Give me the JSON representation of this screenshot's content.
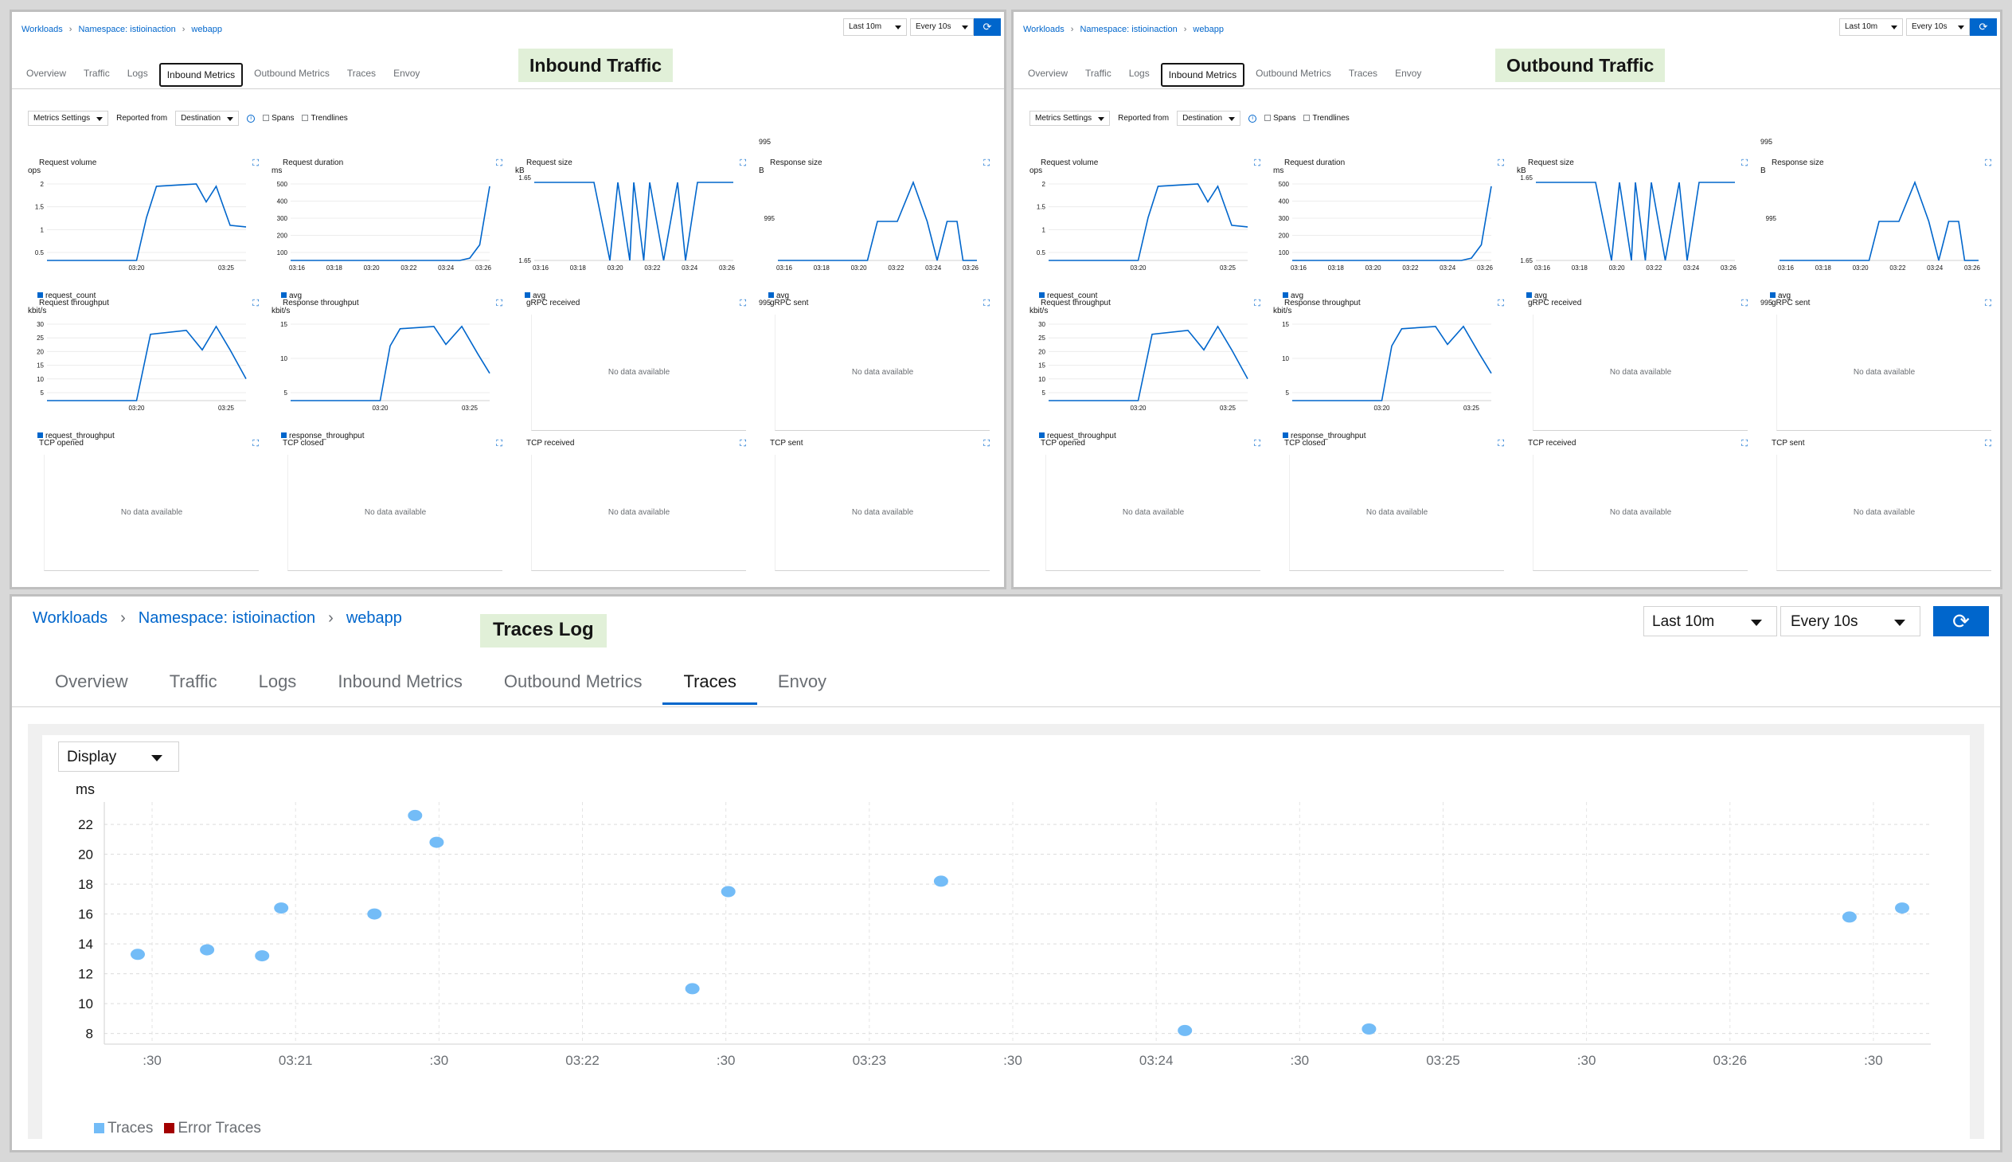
{
  "breadcrumb": {
    "workloads": "Workloads",
    "namespace": "Namespace: istioinaction",
    "app": "webapp"
  },
  "time_range": "Last 10m",
  "refresh": "Every 10s",
  "tabs": [
    "Overview",
    "Traffic",
    "Logs",
    "Inbound Metrics",
    "Outbound Metrics",
    "Traces",
    "Envoy"
  ],
  "inbound_label": "Inbound Traffic",
  "outbound_label": "Outbound Traffic",
  "traces_label": "Traces Log",
  "metrics_bar": {
    "settings": "Metrics Settings",
    "reported_from": "Reported from",
    "destination": "Destination",
    "spans": "Spans",
    "trendlines": "Trendlines"
  },
  "cells": {
    "request_volume": {
      "title": "Request volume",
      "unit": "ops",
      "legend": "request_count",
      "yticks": [
        "2",
        "1.5",
        "1",
        "0.5"
      ],
      "xticks": [
        "03:20",
        "03:25"
      ]
    },
    "request_duration": {
      "title": "Request duration",
      "unit": "ms",
      "legend": "avg",
      "yticks": [
        "500",
        "400",
        "300",
        "200",
        "100"
      ],
      "xticks": [
        "03:16",
        "03:18",
        "03:20",
        "03:22",
        "03:24",
        "03:26"
      ]
    },
    "request_size": {
      "title": "Request size",
      "unit": "kB",
      "legend": "avg",
      "ytop": "1.65",
      "ybottom": "1.65",
      "xticks": [
        "03:16",
        "03:18",
        "03:20",
        "03:22",
        "03:24",
        "03:26"
      ]
    },
    "response_size": {
      "title": "Response size",
      "unit": "B",
      "legend": "avg",
      "top_label": "995",
      "ymid": "995",
      "xticks": [
        "03:16",
        "03:18",
        "03:20",
        "03:22",
        "03:24",
        "03:26"
      ]
    },
    "request_throughput": {
      "title": "Request throughput",
      "unit": "kbit/s",
      "legend": "request_throughput",
      "yticks": [
        "30",
        "25",
        "20",
        "15",
        "10",
        "5"
      ],
      "xticks": [
        "03:20",
        "03:25"
      ]
    },
    "response_throughput": {
      "title": "Response throughput",
      "unit": "kbit/s",
      "legend": "response_throughput",
      "yticks": [
        "15",
        "10",
        "5"
      ],
      "xticks": [
        "03:20",
        "03:25"
      ]
    },
    "grpc_received": {
      "title": "gRPC received",
      "nodata": "No data available"
    },
    "grpc_sent": {
      "title": "gRPC sent",
      "top_label": "995",
      "nodata": "No data available"
    },
    "tcp_opened": {
      "title": "TCP opened",
      "nodata": "No data available"
    },
    "tcp_closed": {
      "title": "TCP closed",
      "nodata": "No data available"
    },
    "tcp_received": {
      "title": "TCP received",
      "nodata": "No data available"
    },
    "tcp_sent": {
      "title": "TCP sent",
      "nodata": "No data available"
    }
  },
  "traces": {
    "display": "Display",
    "y_unit": "ms",
    "legend_traces": "Traces",
    "legend_errors": "Error Traces",
    "colors": {
      "trace": "#73bcf7",
      "error": "#a30000"
    }
  },
  "chart_data": {
    "type": "scatter",
    "ylabel": "ms",
    "ylim": [
      7.5,
      23.5
    ],
    "yticks": [
      8,
      10,
      12,
      14,
      16,
      18,
      20,
      22
    ],
    "xticks": [
      ":30",
      "03:21",
      ":30",
      "03:22",
      ":30",
      "03:23",
      ":30",
      "03:24",
      ":30",
      "03:25",
      ":30",
      "03:26",
      ":30"
    ],
    "series": [
      {
        "name": "Traces",
        "x_seconds_after_03_20": [
          27,
          41.5,
          53,
          57,
          76.5,
          85,
          89.5,
          143,
          150.5,
          195,
          246,
          284.5,
          385,
          396
        ],
        "values": [
          13.3,
          13.6,
          13.2,
          16.4,
          16.0,
          22.6,
          20.8,
          11.0,
          17.5,
          18.2,
          8.2,
          8.3,
          15.8,
          16.4
        ]
      },
      {
        "name": "Error Traces",
        "x_seconds_after_03_20": [],
        "values": []
      }
    ]
  }
}
